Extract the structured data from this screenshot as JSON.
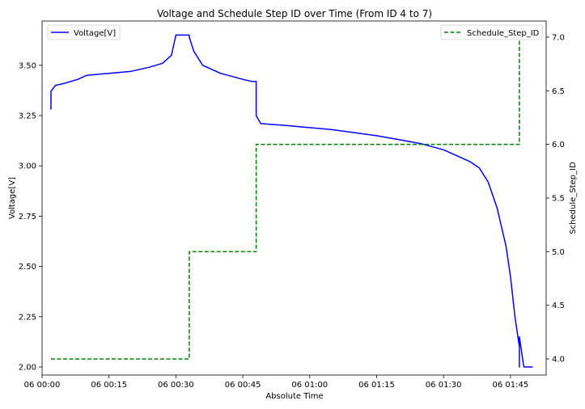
{
  "chart_data": {
    "type": "line",
    "title": "Voltage and Schedule Step ID over Time (From ID 4 to 7)",
    "xlabel": "Absolute Time",
    "ylabel_left": "Voltage[V]",
    "ylabel_right": "Schedule_Step_ID",
    "x_ticks": [
      "06 00:00",
      "06 00:15",
      "06 00:30",
      "06 00:45",
      "06 01:00",
      "06 01:15",
      "06 01:30",
      "06 01:45"
    ],
    "y_left_ticks": [
      "2.00",
      "2.25",
      "2.50",
      "2.75",
      "3.00",
      "3.25",
      "3.50"
    ],
    "y_right_ticks": [
      "4.0",
      "4.5",
      "5.0",
      "5.5",
      "6.0",
      "6.5",
      "7.0"
    ],
    "xlim": [
      "06 00:00",
      "06 01:53"
    ],
    "ylim_left": [
      1.96,
      3.72
    ],
    "ylim_right": [
      3.85,
      7.15
    ],
    "grid": false,
    "legend_left_placement": "top-left",
    "legend_right_placement": "top-right",
    "series": [
      {
        "name": "Voltage[V]",
        "axis": "left",
        "color": "#0000ff",
        "style": "solid",
        "x": [
          "06 00:02",
          "06 00:02",
          "06 00:03",
          "06 00:05",
          "06 00:08",
          "06 00:10",
          "06 00:15",
          "06 00:20",
          "06 00:24",
          "06 00:27",
          "06 00:29",
          "06 00:30",
          "06 00:31",
          "06 00:33",
          "06 00:33",
          "06 00:34",
          "06 00:36",
          "06 00:40",
          "06 00:45",
          "06 00:47",
          "06 00:48",
          "06 00:48",
          "06 00:49",
          "06 00:55",
          "06 01:05",
          "06 01:15",
          "06 01:20",
          "06 01:25",
          "06 01:30",
          "06 01:33",
          "06 01:36",
          "06 01:38",
          "06 01:40",
          "06 01:42",
          "06 01:44",
          "06 01:45",
          "06 01:46",
          "06 01:47",
          "06 01:47",
          "06 01:47",
          "06 01:47",
          "06 01:48",
          "06 01:50"
        ],
        "values": [
          3.28,
          3.37,
          3.4,
          3.41,
          3.43,
          3.45,
          3.46,
          3.47,
          3.49,
          3.51,
          3.55,
          3.65,
          3.65,
          3.65,
          3.64,
          3.57,
          3.5,
          3.46,
          3.43,
          3.42,
          3.42,
          3.25,
          3.21,
          3.2,
          3.18,
          3.15,
          3.13,
          3.11,
          3.08,
          3.05,
          3.02,
          2.99,
          2.92,
          2.79,
          2.6,
          2.45,
          2.25,
          2.1,
          2.08,
          2.0,
          2.15,
          2.0,
          2.0
        ]
      },
      {
        "name": "Schedule_Step_ID",
        "axis": "right",
        "color": "#008000",
        "style": "dashed",
        "x": [
          "06 00:02",
          "06 00:33",
          "06 00:33",
          "06 00:48",
          "06 00:48",
          "06 01:47",
          "06 01:47"
        ],
        "values": [
          4.0,
          4.0,
          5.0,
          5.0,
          6.0,
          6.0,
          7.0
        ]
      }
    ]
  }
}
